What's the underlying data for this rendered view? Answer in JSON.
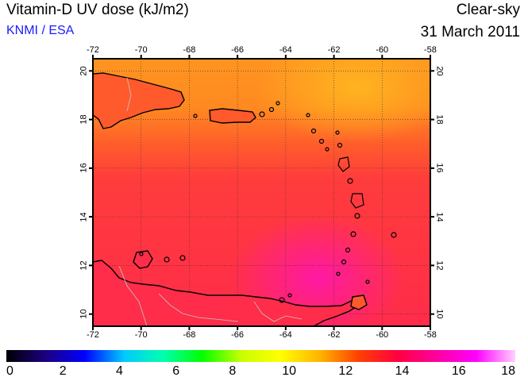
{
  "header": {
    "title": "Vitamin-D UV dose (kJ/m2)",
    "source": "KNMI / ESA",
    "mode": "Clear-sky",
    "date": "31 March 2011"
  },
  "map": {
    "lon_range": [
      -72,
      -58
    ],
    "lat_range": [
      9.5,
      20.5
    ],
    "lon_ticks": [
      "-72",
      "-70",
      "-68",
      "-66",
      "-64",
      "-62",
      "-60",
      "-58"
    ],
    "lat_ticks": [
      "10",
      "12",
      "14",
      "16",
      "18",
      "20"
    ],
    "gridlines": "dotted, every 2 degrees"
  },
  "colorbar": {
    "labels": [
      "0",
      "2",
      "4",
      "6",
      "8",
      "10",
      "12",
      "14",
      "16",
      "18"
    ],
    "range": [
      0,
      18
    ],
    "colors": [
      "#000000",
      "#1c0080",
      "#0000ff",
      "#00c8ff",
      "#00ffb0",
      "#00ff00",
      "#c8ff00",
      "#ffff00",
      "#ffb400",
      "#ff4000",
      "#ff0040",
      "#ff00a0",
      "#ff00ff",
      "#ffd0ff"
    ]
  },
  "field_colors": {
    "north": "#ff9a1e",
    "northeast": "#ffb41e",
    "middle": "#ff3c3c",
    "south": "#ff2c50",
    "maximum": "#ff20a0",
    "land_outline": "#000000",
    "borders": "#c8c8c8"
  }
}
